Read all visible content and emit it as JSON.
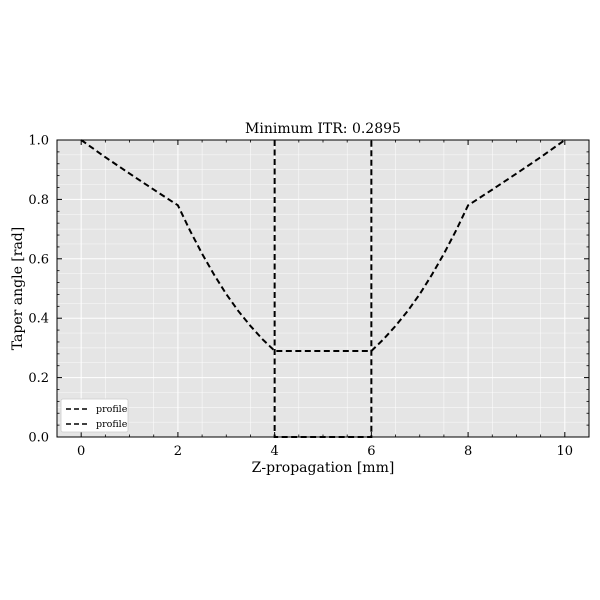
{
  "chart_data": {
    "type": "line",
    "title": "Minimum ITR: 0.2895",
    "xlabel": "Z-propagation [mm]",
    "ylabel": "Taper angle [rad]",
    "xlim": [
      -0.5,
      10.5
    ],
    "ylim": [
      0.0,
      1.0
    ],
    "xticks": [
      0,
      2,
      4,
      6,
      8,
      10
    ],
    "yticks": [
      0.0,
      0.2,
      0.4,
      0.6,
      0.8,
      1.0
    ],
    "xtick_labels": [
      "0",
      "2",
      "4",
      "6",
      "8",
      "10"
    ],
    "ytick_labels": [
      "0.0",
      "0.2",
      "0.4",
      "0.6",
      "0.8",
      "1.0"
    ],
    "grid": true,
    "background": "#e5e5e5",
    "legend_position": "lower-left",
    "series": [
      {
        "name": "profile",
        "color": "#000000",
        "style": "dashed",
        "x": [
          0,
          0.5,
          1,
          1.5,
          2,
          2.25,
          2.5,
          2.75,
          3,
          3.25,
          3.5,
          3.75,
          4,
          4,
          4.5,
          5,
          5.5,
          6,
          6.25,
          6.5,
          6.75,
          7,
          7.25,
          7.5,
          7.75,
          8,
          8.5,
          9,
          9.5,
          10
        ],
        "y": [
          1.0,
          0.942,
          0.887,
          0.833,
          0.78,
          0.695,
          0.617,
          0.546,
          0.481,
          0.424,
          0.374,
          0.329,
          0.29,
          0.2895,
          0.2895,
          0.2895,
          0.2895,
          0.2895,
          0.329,
          0.374,
          0.424,
          0.481,
          0.546,
          0.617,
          0.695,
          0.78,
          0.833,
          0.887,
          0.942,
          1.0
        ]
      },
      {
        "name": "profile",
        "color": "#000000",
        "style": "dashed",
        "x": [
          4,
          4,
          6,
          6
        ],
        "y": [
          1.0,
          0.0,
          0.0,
          1.0
        ]
      }
    ]
  }
}
